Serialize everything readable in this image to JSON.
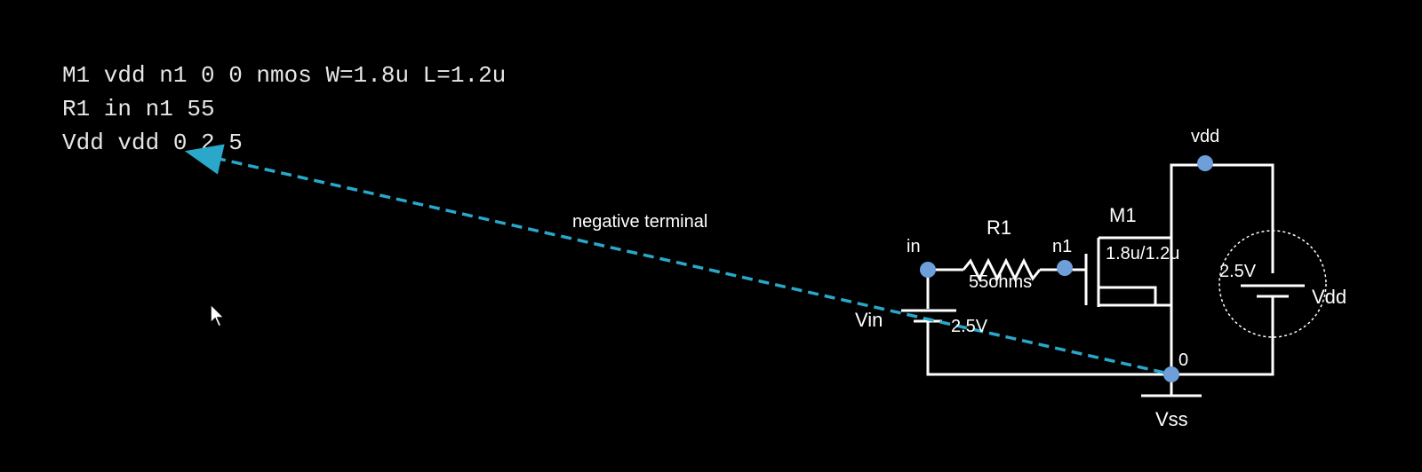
{
  "netlist": [
    "M1 vdd n1 0 0 nmos W=1.8u L=1.2u",
    "R1 in n1 55",
    "Vdd vdd 0 2.5"
  ],
  "annotation": "negative terminal",
  "circuit": {
    "node_vdd": "vdd",
    "node_in": "in",
    "node_n1": "n1",
    "node_0": "0",
    "resistor_name": "R1",
    "resistor_value": "55ohms",
    "mosfet_name": "M1",
    "mosfet_size": "1.8u/1.2u",
    "vdd_source_value": "2.5V",
    "vdd_source_name": "Vdd",
    "vin_source_name": "Vin",
    "vin_source_value": "2.5V",
    "ground_name": "Vss"
  },
  "colors": {
    "background": "#000000",
    "wire": "#ffffff",
    "node": "#6f9fd8",
    "annotation_arrow": "#2aa7c9",
    "text": "#ffffff"
  }
}
